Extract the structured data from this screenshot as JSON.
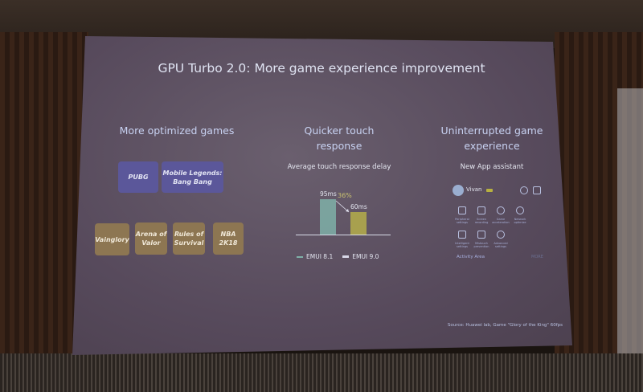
{
  "slide": {
    "title": "GPU Turbo 2.0: More game experience improvement",
    "col1": {
      "heading": "More optimized games",
      "games_blue": [
        "PUBG",
        "Mobile Legends: Bang Bang"
      ],
      "games_gold": [
        "Vainglory",
        "Arena of Valor",
        "Rules of Survival",
        "NBA 2K18"
      ]
    },
    "col2": {
      "heading_line1": "Quicker touch",
      "heading_line2": "response",
      "subtitle": "Average  touch response delay",
      "reduction": "36%"
    },
    "col3": {
      "heading_line1": "Uninterrupted game",
      "heading_line2": "experience",
      "subtitle": "New App assistant",
      "user": "Vivan",
      "row1": [
        "Peripheral settings",
        "Screen recording",
        "Game acceleration",
        "Network optimize"
      ],
      "row2": [
        "Intelligent settings",
        "Mistouch prevention",
        "Advanced settings"
      ],
      "activity": "Activity Area",
      "more": "MORE"
    },
    "source": "Source: Huawei lab, Game \"Glory of the King\" 60fps"
  },
  "colors": {
    "emui81": "#7fb0a8",
    "emui90": "#b5ae4a",
    "reduction": "#c8c070",
    "blue_box": "#5b579a",
    "gold_box": "#8d7652"
  },
  "chart_data": {
    "type": "bar",
    "title": "Average  touch response delay",
    "categories": [
      "EMUI 8.1",
      "EMUI 9.0"
    ],
    "values": [
      95,
      60
    ],
    "data_labels": [
      "95ms",
      "60ms"
    ],
    "ylim": [
      0,
      100
    ],
    "annotation": "36%",
    "legend": "bottom"
  }
}
